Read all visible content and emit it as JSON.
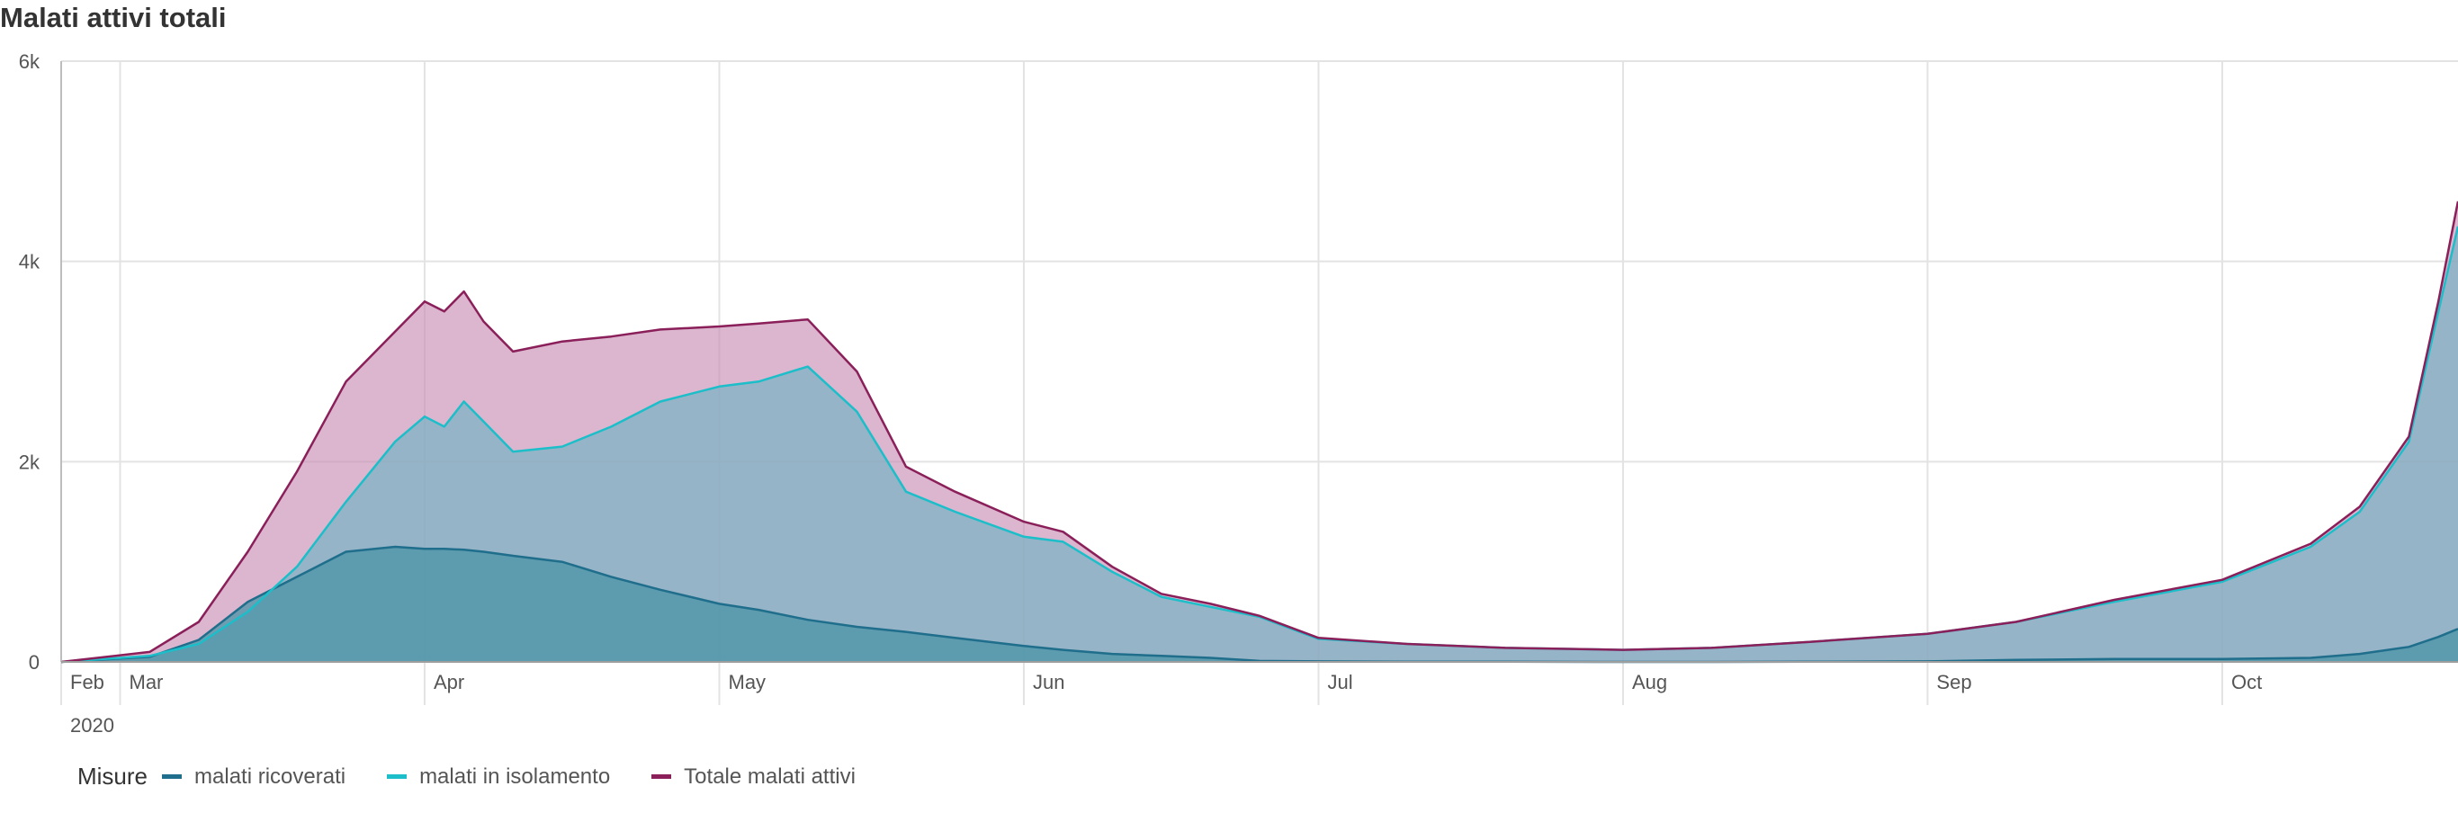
{
  "chart_data": {
    "type": "area",
    "title": "Malati attivi totali",
    "xlabel": "",
    "ylabel": "",
    "ylim": [
      0,
      6000
    ],
    "yticks": [
      0,
      2000,
      4000,
      6000
    ],
    "ytick_labels": [
      "0",
      "2k",
      "4k",
      "6k"
    ],
    "xlim": [
      "2020-02-24",
      "2020-10-25"
    ],
    "xticks": [
      {
        "date": "2020-02-24",
        "label": "Feb"
      },
      {
        "date": "2020-03-01",
        "label": "Mar"
      },
      {
        "date": "2020-04-01",
        "label": "Apr"
      },
      {
        "date": "2020-05-01",
        "label": "May"
      },
      {
        "date": "2020-06-01",
        "label": "Jun"
      },
      {
        "date": "2020-07-01",
        "label": "Jul"
      },
      {
        "date": "2020-08-01",
        "label": "Aug"
      },
      {
        "date": "2020-09-01",
        "label": "Sep"
      },
      {
        "date": "2020-10-01",
        "label": "Oct"
      }
    ],
    "year_label": "2020",
    "grid": true,
    "stacked": false,
    "legend": {
      "title": "Misure",
      "position": "bottom-left"
    },
    "x": [
      "2020-02-24",
      "2020-03-04",
      "2020-03-09",
      "2020-03-14",
      "2020-03-19",
      "2020-03-24",
      "2020-03-29",
      "2020-04-01",
      "2020-04-03",
      "2020-04-05",
      "2020-04-07",
      "2020-04-10",
      "2020-04-15",
      "2020-04-20",
      "2020-04-25",
      "2020-05-01",
      "2020-05-05",
      "2020-05-10",
      "2020-05-15",
      "2020-05-20",
      "2020-05-25",
      "2020-06-01",
      "2020-06-05",
      "2020-06-10",
      "2020-06-15",
      "2020-06-20",
      "2020-06-25",
      "2020-07-01",
      "2020-07-10",
      "2020-07-20",
      "2020-08-01",
      "2020-08-10",
      "2020-08-20",
      "2020-09-01",
      "2020-09-10",
      "2020-09-20",
      "2020-10-01",
      "2020-10-10",
      "2020-10-15",
      "2020-10-20",
      "2020-10-23",
      "2020-10-25"
    ],
    "series": [
      {
        "name": "malati ricoverati",
        "color": "#1f6e8c",
        "values": [
          0,
          50,
          220,
          600,
          850,
          1100,
          1150,
          1130,
          1130,
          1120,
          1100,
          1060,
          1000,
          850,
          720,
          580,
          520,
          420,
          350,
          300,
          240,
          160,
          120,
          80,
          60,
          40,
          10,
          5,
          3,
          2,
          0,
          0,
          2,
          5,
          20,
          30,
          30,
          40,
          80,
          150,
          250,
          330
        ]
      },
      {
        "name": "malati in isolamento",
        "color": "#1bbec9",
        "values": [
          0,
          60,
          180,
          500,
          950,
          1600,
          2200,
          2450,
          2350,
          2600,
          2400,
          2100,
          2150,
          2350,
          2600,
          2750,
          2800,
          2950,
          2500,
          1700,
          1500,
          1250,
          1200,
          900,
          650,
          550,
          450,
          230,
          180,
          140,
          120,
          140,
          200,
          280,
          400,
          600,
          800,
          1150,
          1500,
          2200,
          3500,
          4350
        ]
      },
      {
        "name": "Totale malati attivi",
        "color": "#8a1f5a",
        "values": [
          0,
          100,
          400,
          1100,
          1900,
          2800,
          3300,
          3600,
          3500,
          3700,
          3400,
          3100,
          3200,
          3250,
          3320,
          3350,
          3380,
          3420,
          2900,
          1950,
          1700,
          1400,
          1300,
          950,
          680,
          580,
          460,
          240,
          180,
          140,
          120,
          140,
          200,
          280,
          400,
          620,
          820,
          1180,
          1550,
          2250,
          3600,
          4600
        ]
      }
    ]
  }
}
